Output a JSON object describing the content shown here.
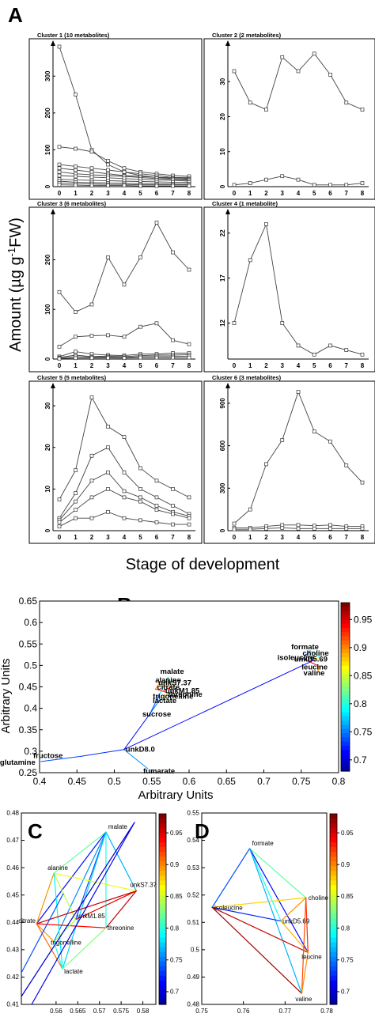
{
  "panel_A": {
    "letter": "A",
    "ylabel_main": "Amount (µg g",
    "ylabel_sup": "-1",
    "ylabel_tail": "FW)",
    "xlabel": "Stage of development"
  },
  "panel_B": {
    "letter": "B",
    "xlabel": "Arbitrary Units",
    "ylabel": "Arbitrary Units"
  },
  "panel_C": {
    "letter": "C"
  },
  "panel_D": {
    "letter": "D"
  },
  "colors": {
    "colormap": [
      "#00008f",
      "#0000ff",
      "#0080ff",
      "#00ffff",
      "#80ff80",
      "#ffff00",
      "#ff8000",
      "#ff0000",
      "#800000"
    ],
    "axis": "#000000",
    "line": "#444444"
  },
  "chart_data": [
    {
      "type": "line",
      "title": "Cluster 1 (10 metabolites)",
      "categories": [
        "0",
        "1",
        "2",
        "3",
        "4",
        "5",
        "6",
        "7",
        "8"
      ],
      "ylim": [
        0,
        380
      ],
      "yticks": [
        0,
        100,
        200,
        300
      ],
      "series": [
        {
          "values": [
            380,
            250,
            100,
            60,
            40,
            30,
            25,
            25,
            25
          ]
        },
        {
          "values": [
            108,
            103,
            95,
            70,
            50,
            40,
            35,
            30,
            28
          ]
        },
        {
          "values": [
            60,
            55,
            50,
            45,
            40,
            35,
            30,
            25,
            22
          ]
        },
        {
          "values": [
            50,
            45,
            40,
            35,
            30,
            28,
            25,
            22,
            20
          ]
        },
        {
          "values": [
            40,
            35,
            32,
            30,
            28,
            25,
            22,
            20,
            18
          ]
        },
        {
          "values": [
            30,
            28,
            26,
            24,
            22,
            20,
            18,
            17,
            15
          ]
        },
        {
          "values": [
            20,
            18,
            17,
            16,
            15,
            14,
            13,
            12,
            12
          ]
        },
        {
          "values": [
            15,
            12,
            11,
            10,
            9,
            8,
            8,
            7,
            7
          ]
        },
        {
          "values": [
            10,
            8,
            7,
            6,
            6,
            5,
            5,
            5,
            5
          ]
        },
        {
          "values": [
            5,
            4,
            3,
            3,
            3,
            2,
            2,
            2,
            2
          ]
        }
      ]
    },
    {
      "type": "line",
      "title": "Cluster 2 (2 metabolites)",
      "categories": [
        "0",
        "1",
        "2",
        "3",
        "4",
        "5",
        "6",
        "7",
        "8"
      ],
      "ylim": [
        0,
        40
      ],
      "yticks": [
        0,
        10,
        20,
        30
      ],
      "series": [
        {
          "values": [
            33,
            24,
            22,
            37,
            33,
            38,
            32,
            24,
            22
          ]
        },
        {
          "values": [
            0.5,
            1,
            2,
            3,
            2,
            0.5,
            0.5,
            0.5,
            1
          ]
        }
      ]
    },
    {
      "type": "line",
      "title": "Cluster 3 (6 metabolites)",
      "categories": [
        "0",
        "1",
        "2",
        "3",
        "4",
        "5",
        "6",
        "7",
        "8"
      ],
      "ylim": [
        0,
        290
      ],
      "yticks": [
        0,
        100,
        200
      ],
      "series": [
        {
          "values": [
            135,
            95,
            110,
            205,
            150,
            205,
            275,
            215,
            180
          ]
        },
        {
          "values": [
            25,
            45,
            47,
            48,
            45,
            65,
            72,
            38,
            30
          ]
        },
        {
          "values": [
            5,
            15,
            10,
            8,
            7,
            10,
            10,
            12,
            12
          ]
        },
        {
          "values": [
            3,
            8,
            5,
            6,
            5,
            7,
            8,
            8,
            9
          ]
        },
        {
          "values": [
            2,
            5,
            4,
            4,
            3,
            5,
            5,
            5,
            6
          ]
        },
        {
          "values": [
            1,
            2,
            2,
            2,
            2,
            3,
            3,
            3,
            3
          ]
        }
      ]
    },
    {
      "type": "line",
      "title": "Cluster 4 (1 metabolite)",
      "categories": [
        "0",
        "1",
        "2",
        "3",
        "4",
        "5",
        "6",
        "7",
        "8"
      ],
      "ylim": [
        8,
        24
      ],
      "yticks": [
        12,
        17,
        22
      ],
      "series": [
        {
          "values": [
            12,
            19,
            23,
            12,
            9.5,
            8.5,
            9.5,
            9,
            8.5
          ]
        }
      ]
    },
    {
      "type": "line",
      "title": "Cluster 5 (5 metabolites)",
      "categories": [
        "0",
        "1",
        "2",
        "3",
        "4",
        "5",
        "6",
        "7",
        "8"
      ],
      "ylim": [
        0,
        34
      ],
      "yticks": [
        0,
        10,
        20,
        30
      ],
      "series": [
        {
          "values": [
            7.5,
            14.5,
            32,
            25,
            22.5,
            15,
            12,
            10,
            8
          ]
        },
        {
          "values": [
            3,
            9,
            18,
            20,
            14,
            10,
            8,
            6,
            4
          ]
        },
        {
          "values": [
            2.5,
            7,
            12,
            14,
            9.5,
            8,
            6,
            4.5,
            3.5
          ]
        },
        {
          "values": [
            2,
            5,
            8,
            10,
            8,
            7,
            5,
            4,
            3
          ]
        },
        {
          "values": [
            1,
            3,
            3,
            4.5,
            3,
            2.5,
            2,
            1.5,
            1.5
          ]
        }
      ]
    },
    {
      "type": "line",
      "title": "Cluster 6 (3 metabolites)",
      "categories": [
        "0",
        "1",
        "2",
        "3",
        "4",
        "5",
        "6",
        "7",
        "8"
      ],
      "ylim": [
        0,
        1000
      ],
      "yticks": [
        0,
        300,
        600,
        900
      ],
      "series": [
        {
          "values": [
            50,
            150,
            470,
            640,
            980,
            700,
            630,
            460,
            340
          ]
        },
        {
          "values": [
            20,
            20,
            30,
            40,
            40,
            35,
            40,
            30,
            30
          ]
        },
        {
          "values": [
            10,
            10,
            15,
            20,
            15,
            15,
            15,
            15,
            15
          ]
        }
      ]
    },
    {
      "type": "scatter",
      "xlabel": "Arbitrary Units",
      "ylabel": "Arbitrary Units",
      "xlim": [
        0.4,
        0.8
      ],
      "ylim": [
        0.25,
        0.65
      ],
      "xticks": [
        "0.4",
        "0.45",
        "0.5",
        "0.55",
        "0.6",
        "0.65",
        "0.7",
        "0.75",
        "0.8"
      ],
      "yticks": [
        "0.25",
        "0.3",
        "0.35",
        "0.4",
        "0.45",
        "0.5",
        "0.55",
        "0.6",
        "0.65"
      ],
      "colorbar": {
        "range": [
          0.68,
          0.98
        ],
        "ticks": [
          "0.7",
          "0.75",
          "0.8",
          "0.85",
          "0.9",
          "0.95"
        ]
      },
      "points": [
        {
          "label": "formate",
          "x": 0.762,
          "y": 0.534
        },
        {
          "label": "choline",
          "x": 0.775,
          "y": 0.519
        },
        {
          "label": "isoleucine",
          "x": 0.752,
          "y": 0.516
        },
        {
          "label": "unkD5.69",
          "x": 0.768,
          "y": 0.513
        },
        {
          "label": "leucine",
          "x": 0.774,
          "y": 0.498
        },
        {
          "label": "valine",
          "x": 0.772,
          "y": 0.484
        },
        {
          "label": "malate",
          "x": 0.572,
          "y": 0.473
        },
        {
          "label": "alanine",
          "x": 0.56,
          "y": 0.458
        },
        {
          "label": "unkS7.37",
          "x": 0.578,
          "y": 0.452
        },
        {
          "label": "citrate",
          "x": 0.555,
          "y": 0.445
        },
        {
          "label": "unkM1.85",
          "x": 0.566,
          "y": 0.441
        },
        {
          "label": "threonine",
          "x": 0.572,
          "y": 0.436
        },
        {
          "label": "trigonelline",
          "x": 0.56,
          "y": 0.432
        },
        {
          "label": "lactate",
          "x": 0.562,
          "y": 0.423
        },
        {
          "label": "sucrose",
          "x": 0.548,
          "y": 0.388
        },
        {
          "label": "unkD8.0",
          "x": 0.513,
          "y": 0.304
        },
        {
          "label": "fructose",
          "x": 0.455,
          "y": 0.288
        },
        {
          "label": "glutamine",
          "x": 0.402,
          "y": 0.276
        },
        {
          "label": "fumarate",
          "x": 0.545,
          "y": 0.259
        }
      ]
    },
    {
      "type": "scatter",
      "xlim": [
        0.552,
        0.583
      ],
      "ylim": [
        0.41,
        0.48
      ],
      "xticks": [
        "0.56",
        "0.565",
        "0.57",
        "0.575",
        "0.58"
      ],
      "yticks": [
        "0.41",
        "0.42",
        "0.43",
        "0.44",
        "0.45",
        "0.46",
        "0.47",
        "0.48"
      ],
      "colorbar": {
        "range": [
          0.68,
          0.98
        ],
        "ticks": [
          "0.7",
          "0.75",
          "0.8",
          "0.85",
          "0.9",
          "0.95"
        ]
      },
      "points": [
        {
          "label": "malate",
          "x": 0.5715,
          "y": 0.473
        },
        {
          "label": "alanine",
          "x": 0.5595,
          "y": 0.458
        },
        {
          "label": "unkS7.37",
          "x": 0.5785,
          "y": 0.4515
        },
        {
          "label": "citrate",
          "x": 0.5555,
          "y": 0.4395
        },
        {
          "label": "unkM1.85",
          "x": 0.5645,
          "y": 0.441
        },
        {
          "label": "threonine",
          "x": 0.5715,
          "y": 0.438
        },
        {
          "label": "trigonelline",
          "x": 0.5595,
          "y": 0.433
        },
        {
          "label": "lactate",
          "x": 0.5615,
          "y": 0.423
        }
      ]
    },
    {
      "type": "scatter",
      "xlim": [
        0.75,
        0.78
      ],
      "ylim": [
        0.48,
        0.55
      ],
      "xticks": [
        "0.75",
        "0.76",
        "0.77",
        "0.78"
      ],
      "yticks": [
        "0.48",
        "0.49",
        "0.5",
        "0.51",
        "0.52",
        "0.53",
        "0.54",
        "0.55"
      ],
      "colorbar": {
        "range": [
          0.68,
          0.98
        ],
        "ticks": [
          "0.7",
          "0.75",
          "0.8",
          "0.85",
          "0.9",
          "0.95"
        ]
      },
      "points": [
        {
          "label": "formate",
          "x": 0.7615,
          "y": 0.537
        },
        {
          "label": "isoleucine",
          "x": 0.7525,
          "y": 0.5155
        },
        {
          "label": "unkD5.69",
          "x": 0.769,
          "y": 0.5105
        },
        {
          "label": "choline",
          "x": 0.775,
          "y": 0.519
        },
        {
          "label": "leucine",
          "x": 0.7755,
          "y": 0.499
        },
        {
          "label": "valine",
          "x": 0.774,
          "y": 0.484
        }
      ]
    }
  ]
}
